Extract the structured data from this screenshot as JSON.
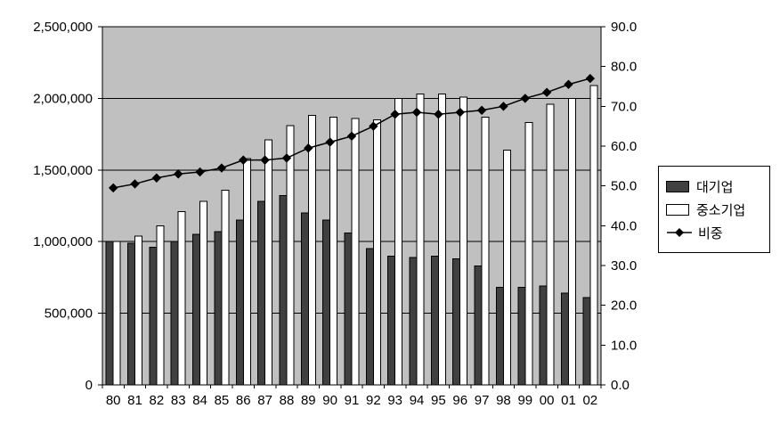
{
  "chart_data": {
    "type": "combo",
    "title": "",
    "xlabel": "",
    "ylabel": "",
    "grid": true,
    "legend_position": "right",
    "plot_bg": "#c0c0c0",
    "figure_bg": "#ffffff",
    "categories": [
      "80",
      "81",
      "82",
      "83",
      "84",
      "85",
      "86",
      "87",
      "88",
      "89",
      "90",
      "91",
      "92",
      "93",
      "94",
      "95",
      "96",
      "97",
      "98",
      "99",
      "00",
      "01",
      "02"
    ],
    "series": [
      {
        "name": "대기업",
        "type": "bar",
        "axis": "left",
        "color": "#404040",
        "values": [
          1000000,
          990000,
          960000,
          1000000,
          1050000,
          1070000,
          1150000,
          1280000,
          1320000,
          1200000,
          1150000,
          1060000,
          950000,
          900000,
          890000,
          900000,
          880000,
          830000,
          680000,
          680000,
          690000,
          640000,
          610000
        ]
      },
      {
        "name": "중소기업",
        "type": "bar",
        "axis": "left",
        "color": "#ffffff",
        "values": [
          1000000,
          1040000,
          1110000,
          1210000,
          1280000,
          1360000,
          1580000,
          1710000,
          1810000,
          1880000,
          1870000,
          1860000,
          1850000,
          2000000,
          2030000,
          2030000,
          2010000,
          1870000,
          1640000,
          1830000,
          1960000,
          2000000,
          2090000
        ]
      },
      {
        "name": "비중",
        "type": "line",
        "axis": "right",
        "color": "#000000",
        "marker": "diamond",
        "values": [
          49.5,
          50.5,
          52.0,
          53.0,
          53.5,
          54.5,
          56.5,
          56.5,
          57.0,
          59.5,
          61.0,
          62.5,
          65.0,
          68.0,
          68.5,
          68.0,
          68.5,
          69.0,
          70.0,
          72.0,
          73.5,
          75.5,
          77.0
        ]
      }
    ],
    "left_axis": {
      "min": 0,
      "max": 2500000,
      "tick_labels": [
        "0",
        "500,000",
        "1,000,000",
        "1,500,000",
        "2,000,000",
        "2,500,000"
      ]
    },
    "right_axis": {
      "min": 0,
      "max": 90,
      "tick_labels": [
        "0.0",
        "10.0",
        "20.0",
        "30.0",
        "40.0",
        "50.0",
        "60.0",
        "70.0",
        "80.0",
        "90.0"
      ]
    }
  }
}
